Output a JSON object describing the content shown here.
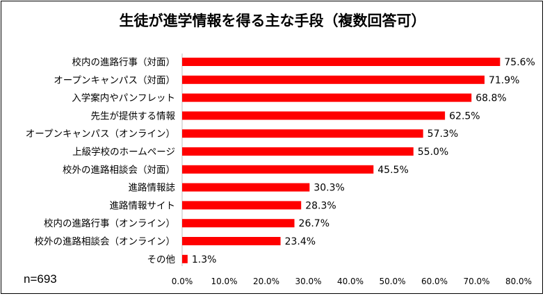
{
  "chart_data": {
    "type": "bar",
    "orientation": "horizontal",
    "title": "生徒が進学情報を得る主な手段（複数回答可）",
    "note": "n=693",
    "categories": [
      "校内の進路行事（対面）",
      "オープンキャンパス（対面）",
      "入学案内やパンフレット",
      "先生が提供する情報",
      "オープンキャンパス（オンライン）",
      "上級学校のホームページ",
      "校外の進路相談会（対面）",
      "進路情報誌",
      "進路情報サイト",
      "校内の進路行事（オンライン）",
      "校外の進路相談会（オンライン）",
      "その他"
    ],
    "values": [
      75.6,
      71.9,
      68.8,
      62.5,
      57.3,
      55.0,
      45.5,
      30.3,
      28.3,
      26.7,
      23.4,
      1.3
    ],
    "value_labels": [
      "75.6%",
      "71.9%",
      "68.8%",
      "62.5%",
      "57.3%",
      "55.0%",
      "45.5%",
      "30.3%",
      "28.3%",
      "26.7%",
      "23.4%",
      "1.3%"
    ],
    "xlim": [
      0,
      80
    ],
    "xticks": [
      0,
      10,
      20,
      30,
      40,
      50,
      60,
      70,
      80
    ],
    "xtick_labels": [
      "0.0%",
      "10.0%",
      "20.0%",
      "30.0%",
      "40.0%",
      "50.0%",
      "60.0%",
      "70.0%",
      "80.0%"
    ],
    "bar_color": "#ff0000",
    "grid": false,
    "legend": "none"
  }
}
